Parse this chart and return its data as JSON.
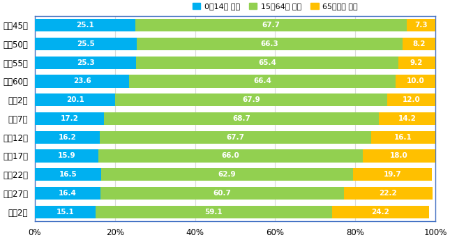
{
  "categories": [
    "昭和45年",
    "昭和50年",
    "昭和55年",
    "昭和60年",
    "平成2年",
    "平成7年",
    "平成12年",
    "平成17年",
    "平成22年",
    "平成27年",
    "令和2年"
  ],
  "young": [
    25.1,
    25.5,
    25.3,
    23.6,
    20.1,
    17.2,
    16.2,
    15.9,
    16.5,
    16.4,
    15.1
  ],
  "working": [
    67.7,
    66.3,
    65.4,
    66.4,
    67.9,
    68.7,
    67.7,
    66.0,
    62.9,
    60.7,
    59.1
  ],
  "elderly": [
    7.3,
    8.2,
    9.2,
    10.0,
    12.0,
    14.2,
    16.1,
    18.0,
    19.7,
    22.2,
    24.2
  ],
  "color_young": "#00B0F0",
  "color_working": "#92D050",
  "color_elderly": "#FFC000",
  "legend_labels": [
    "0～14歳 人口",
    "15～64歳 人口",
    "65歳以上 人口"
  ],
  "bg_color": "#FFFFFF",
  "border_color": "#4472C4",
  "grid_color": "#D9D9D9",
  "bar_height": 0.68,
  "label_fontsize": 7.5,
  "tick_fontsize": 8.5,
  "legend_fontsize": 8.0
}
